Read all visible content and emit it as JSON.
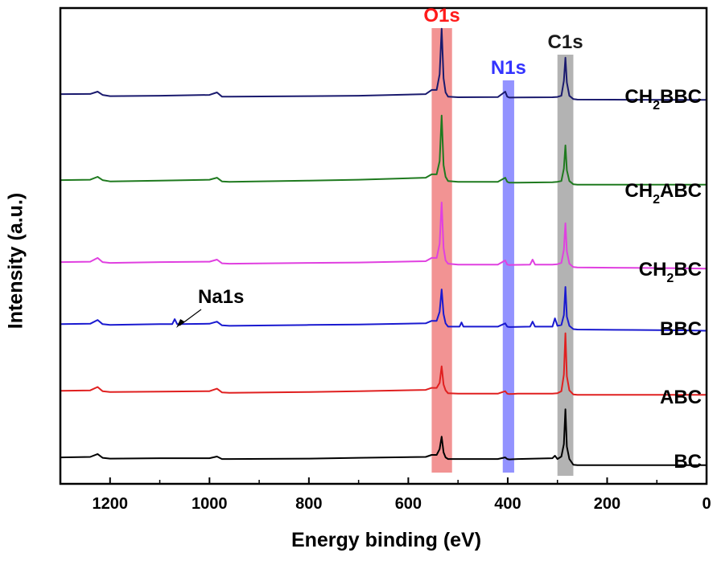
{
  "chart_data": {
    "type": "line",
    "title": "",
    "xlabel": "Energy binding (eV)",
    "ylabel": "Intensity (a.u.)",
    "xlim": [
      1300,
      0
    ],
    "x_reversed": true,
    "x_ticks": [
      1200,
      1000,
      800,
      600,
      400,
      200,
      0
    ],
    "y_ticks": "none",
    "grid": false,
    "bands": [
      {
        "label": "O1s",
        "from": 512,
        "to": 553,
        "color": "#f08080"
      },
      {
        "label": "N1s",
        "from": 387,
        "to": 410,
        "color": "#8080ff"
      },
      {
        "label": "C1s",
        "from": 268,
        "to": 300,
        "color": "#a6a6a6"
      }
    ],
    "annotations": [
      {
        "text": "Na1s",
        "points_to_x": 1070
      }
    ],
    "series": [
      {
        "name": "CH2BBC",
        "label_main": "CH",
        "label_sub": "2",
        "label_rest": "BBC",
        "color": "#1a1a6e",
        "x": [
          1300,
          1240,
          1225,
          1215,
          1200,
          1100,
          1000,
          985,
          975,
          960,
          800,
          700,
          565,
          553,
          543,
          537,
          533,
          529,
          525,
          520,
          500,
          420,
          405,
          401,
          397,
          380,
          310,
          300,
          292,
          287,
          284,
          281,
          276,
          268,
          260,
          150,
          50,
          0
        ],
        "y": [
          6,
          6.2,
          9,
          5,
          3.5,
          4,
          5,
          8,
          3,
          3,
          3.5,
          4,
          6,
          11,
          11,
          30,
          85,
          25,
          8,
          3,
          2.2,
          2.4,
          9,
          3,
          1.8,
          2,
          2.2,
          2.6,
          4,
          22,
          50,
          20,
          4,
          0,
          -0.6,
          -0.8,
          -1,
          -1
        ],
        "offset": 450
      },
      {
        "name": "CH2ABC",
        "label_main": "CH",
        "label_sub": "2",
        "label_rest": "ABC",
        "color": "#1f7a1f",
        "x": [
          1300,
          1240,
          1225,
          1215,
          1200,
          1100,
          1000,
          985,
          975,
          960,
          800,
          700,
          565,
          553,
          543,
          537,
          533,
          529,
          525,
          520,
          500,
          420,
          405,
          401,
          397,
          380,
          310,
          300,
          292,
          287,
          284,
          281,
          276,
          268,
          260,
          150,
          50,
          0
        ],
        "y": [
          2,
          2.5,
          6,
          2,
          0.5,
          1.5,
          2.5,
          5,
          0.5,
          0,
          1.5,
          2.5,
          5,
          9,
          9,
          25,
          80,
          20,
          6,
          1,
          0,
          0,
          5,
          0,
          -1,
          -1,
          -0.5,
          0,
          1,
          16,
          44,
          14,
          1,
          -3,
          -3.5,
          -3.5,
          -3.5,
          -3.5
        ],
        "offset": 350
      },
      {
        "name": "CH2BC",
        "label_main": "CH",
        "label_sub": "2",
        "label_rest": "BC",
        "color": "#e040e0",
        "x": [
          1300,
          1240,
          1225,
          1215,
          1200,
          1100,
          1000,
          985,
          975,
          960,
          800,
          700,
          565,
          553,
          543,
          537,
          533,
          529,
          525,
          520,
          500,
          420,
          405,
          401,
          397,
          355,
          350,
          345,
          310,
          300,
          292,
          287,
          284,
          281,
          276,
          268,
          260,
          150,
          50,
          0
        ],
        "y": [
          3,
          3.5,
          8,
          3,
          2,
          3,
          3.5,
          6,
          1.5,
          1,
          2,
          2.5,
          4,
          8,
          8,
          25,
          75,
          20,
          5,
          1,
          0,
          0,
          5,
          0,
          -0.5,
          0,
          6,
          0,
          0,
          0.5,
          2,
          18,
          50,
          16,
          1,
          -3,
          -3.5,
          -4,
          -4.5,
          -5
        ],
        "offset": 250
      },
      {
        "name": "BBC",
        "label_main": "BBC",
        "label_sub": "",
        "label_rest": "",
        "color": "#1a1ad0",
        "x": [
          1300,
          1240,
          1225,
          1215,
          1200,
          1100,
          1075,
          1070,
          1065,
          1000,
          985,
          975,
          960,
          800,
          700,
          565,
          553,
          543,
          537,
          533,
          529,
          525,
          520,
          497,
          493,
          489,
          420,
          405,
          401,
          397,
          355,
          350,
          345,
          310,
          305,
          300,
          292,
          287,
          284,
          281,
          276,
          268,
          260,
          150,
          50,
          0
        ],
        "y": [
          3,
          3.5,
          8,
          3,
          2,
          3,
          3,
          9,
          3,
          3.5,
          6,
          1.5,
          1,
          2,
          2.5,
          4,
          7,
          7,
          18,
          45,
          15,
          4,
          0,
          0,
          5,
          0,
          0,
          4,
          0,
          -0.5,
          0,
          6,
          0,
          0,
          10,
          1,
          2,
          14,
          48,
          12,
          1,
          -3,
          -3.5,
          -4,
          -4.5,
          -5
        ],
        "offset": 175
      },
      {
        "name": "ABC",
        "label_main": "ABC",
        "label_sub": "",
        "label_rest": "",
        "color": "#e02020",
        "x": [
          1300,
          1240,
          1225,
          1215,
          1200,
          1100,
          1000,
          985,
          975,
          960,
          800,
          700,
          565,
          553,
          543,
          537,
          533,
          529,
          525,
          520,
          500,
          420,
          405,
          401,
          397,
          380,
          310,
          300,
          292,
          287,
          284,
          281,
          276,
          268,
          260,
          150,
          50,
          0
        ],
        "y": [
          2.5,
          3,
          7,
          2,
          1,
          1.5,
          2,
          5,
          0.5,
          0,
          1,
          2,
          3.5,
          6,
          6,
          12,
          32,
          10,
          3,
          -0.5,
          -1,
          -1,
          2,
          -1,
          -1.5,
          -1,
          -1,
          -0.5,
          2,
          22,
          72,
          20,
          3,
          -2,
          -2.5,
          -2.5,
          -2.5,
          -2.5
        ],
        "offset": 95
      },
      {
        "name": "BC",
        "label_main": "BC",
        "label_sub": "",
        "label_rest": "",
        "color": "#000000",
        "x": [
          1300,
          1240,
          1225,
          1215,
          1200,
          1100,
          1000,
          985,
          975,
          960,
          800,
          700,
          565,
          553,
          543,
          537,
          533,
          529,
          525,
          520,
          500,
          420,
          405,
          401,
          397,
          380,
          310,
          305,
          300,
          292,
          287,
          284,
          281,
          276,
          268,
          260,
          150,
          50,
          0
        ],
        "y": [
          2,
          2.5,
          6,
          1.5,
          0.5,
          1,
          1,
          3,
          0,
          0,
          0.5,
          1.5,
          2.5,
          5,
          5,
          12,
          27,
          8,
          2,
          0,
          0,
          0,
          2,
          0,
          -0.5,
          0,
          1,
          4,
          0,
          3,
          18,
          60,
          15,
          0,
          -7,
          -7.5,
          -7.5,
          -7.5,
          -7.5
        ],
        "offset": 15
      }
    ]
  }
}
